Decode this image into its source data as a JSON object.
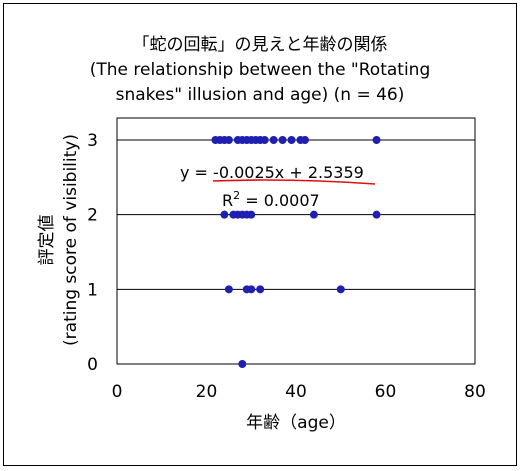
{
  "chart_data": {
    "type": "scatter",
    "title_lines": [
      "「蛇の回転」の見えと年齢の関係",
      "(The relationship between the \"Rotating",
      "snakes\" illusion and age) (n = 46)"
    ],
    "xlabel": "年齢（age）",
    "ylabel_lines": [
      "評定値",
      "(rating score of visibility)"
    ],
    "xlim": [
      0,
      80
    ],
    "ylim": [
      0,
      3
    ],
    "x_ticks": [
      "0",
      "20",
      "40",
      "60",
      "80"
    ],
    "y_ticks": [
      "0",
      "1",
      "2",
      "3"
    ],
    "grid": "horizontal",
    "marker_color": "#1f1fb0",
    "trendline_color": "#e01010",
    "equation_text": "y = -0.0025x + 2.5359",
    "r2_prefix": "R",
    "r2_superscript": "2",
    "r2_value": " = 0.0007",
    "points": [
      {
        "x": 28,
        "y": 0
      },
      {
        "x": 25,
        "y": 1
      },
      {
        "x": 29,
        "y": 1
      },
      {
        "x": 30,
        "y": 1
      },
      {
        "x": 32,
        "y": 1
      },
      {
        "x": 50,
        "y": 1
      },
      {
        "x": 24,
        "y": 2
      },
      {
        "x": 26,
        "y": 2
      },
      {
        "x": 27,
        "y": 2
      },
      {
        "x": 28,
        "y": 2
      },
      {
        "x": 29,
        "y": 2
      },
      {
        "x": 30,
        "y": 2
      },
      {
        "x": 44,
        "y": 2
      },
      {
        "x": 58,
        "y": 2
      },
      {
        "x": 22,
        "y": 3
      },
      {
        "x": 23,
        "y": 3
      },
      {
        "x": 24,
        "y": 3
      },
      {
        "x": 25,
        "y": 3
      },
      {
        "x": 27,
        "y": 3
      },
      {
        "x": 28,
        "y": 3
      },
      {
        "x": 29,
        "y": 3
      },
      {
        "x": 30,
        "y": 3
      },
      {
        "x": 31,
        "y": 3
      },
      {
        "x": 32,
        "y": 3
      },
      {
        "x": 33,
        "y": 3
      },
      {
        "x": 35,
        "y": 3
      },
      {
        "x": 37,
        "y": 3
      },
      {
        "x": 39,
        "y": 3
      },
      {
        "x": 41,
        "y": 3
      },
      {
        "x": 42,
        "y": 3
      },
      {
        "x": 58,
        "y": 3
      }
    ]
  }
}
